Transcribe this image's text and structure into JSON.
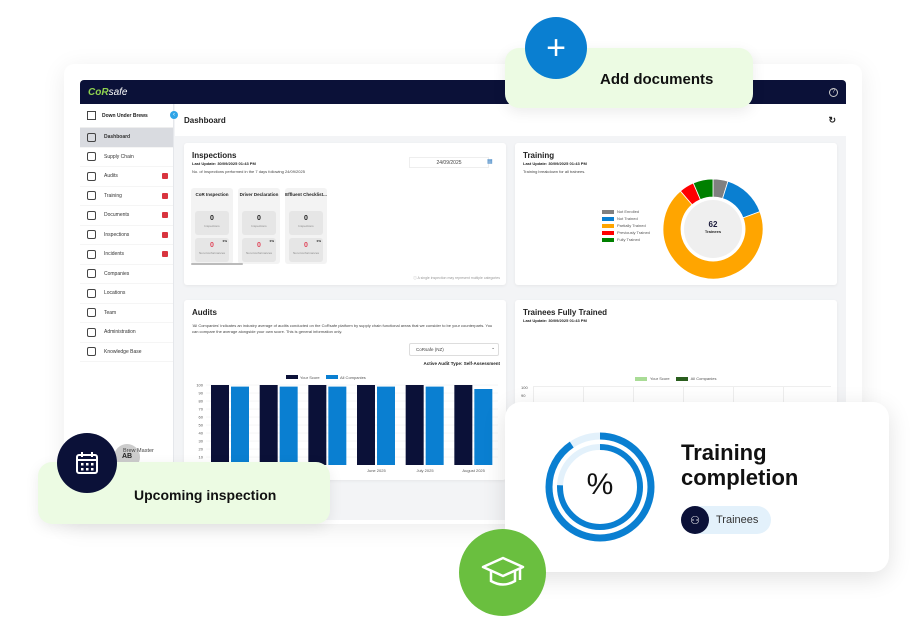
{
  "app": {
    "logo_a": "CoR",
    "logo_b": "safe",
    "company": "Down Under Brews",
    "page_title": "Dashboard",
    "user_initials": "AB",
    "user_name": "Brew Master"
  },
  "sidebar": {
    "items": [
      {
        "label": "Dashboard",
        "active": true,
        "badge": false
      },
      {
        "label": "Supply Chain",
        "badge": false
      },
      {
        "label": "Audits",
        "badge": true
      },
      {
        "label": "Training",
        "badge": true
      },
      {
        "label": "Documents",
        "badge": true
      },
      {
        "label": "Inspections",
        "badge": true
      },
      {
        "label": "Incidents",
        "badge": true
      },
      {
        "label": "Companies",
        "badge": false
      },
      {
        "label": "Locations",
        "badge": false
      },
      {
        "label": "Team",
        "badge": false
      },
      {
        "label": "Administration",
        "badge": false
      },
      {
        "label": "Knowledge Base",
        "badge": false
      }
    ]
  },
  "inspections": {
    "title": "Inspections",
    "last_update": "Last Update: 30/09/2025 01:43 PM",
    "desc": "No. of Inspections performed in the 7 days following 24/09/2025",
    "date": "24/09/2025",
    "note": "A single inspection may represent multiple categories",
    "boxes": [
      {
        "name": "CoR Inspection",
        "count": "0",
        "count_label": "Inspections",
        "nc": "0",
        "nc_pct": "0%",
        "nc_label": "Non-Conformances"
      },
      {
        "name": "Driver Declaration",
        "count": "0",
        "count_label": "Inspections",
        "nc": "0",
        "nc_pct": "0%",
        "nc_label": "Non-Conformances"
      },
      {
        "name": "Effluent Checklist...",
        "count": "0",
        "count_label": "Inspections",
        "nc": "0",
        "nc_pct": "0%",
        "nc_label": "Non-Conformances"
      }
    ]
  },
  "training": {
    "title": "Training",
    "last_update": "Last Update: 30/09/2025 01:43 PM",
    "desc": "Training breakdown for all trainees.",
    "total": "62",
    "total_label": "Trainees"
  },
  "audits": {
    "title": "Audits",
    "desc": "'All Companies' indicates an industry average of audits conducted on the CoRsafe platform by supply chain functional areas that we consider to be your counterparts. You can compare the average alongside your own score. This is general information only.",
    "select": "CoRsafe (NZ)",
    "active_type": "Active Audit Type: Self-Assessment"
  },
  "trainees_fully": {
    "title": "Trainees Fully Trained",
    "last_update": "Last Update: 30/09/2025 01:43 PM",
    "legend": [
      "Your Score",
      "All Companies"
    ],
    "yticks": [
      "100",
      "90",
      "80"
    ]
  },
  "overlays": {
    "add_documents": "Add documents",
    "upcoming": "Upcoming inspection",
    "tc_title_1": "Training",
    "tc_title_2": "completion",
    "tc_symbol": "%",
    "tc_chip": "Trainees"
  },
  "colors": {
    "navy": "#0b1138",
    "blue": "#0a7fd1",
    "green": "#6abf3f",
    "light_green": "#ecfbe3"
  },
  "chart_data": [
    {
      "type": "pie",
      "title": "",
      "categories": [
        "Not Enrolled",
        "Not Trained",
        "Partially Trained",
        "Previously Trained",
        "Fully Trained"
      ],
      "values": [
        3,
        9,
        43,
        3,
        4
      ],
      "colors": [
        "#808080",
        "#0a7fd1",
        "#ffa500",
        "#ff0000",
        "#008000"
      ],
      "legend": "left"
    },
    {
      "type": "bar",
      "categories": [
        "",
        "",
        "",
        "June 2025",
        "July 2025",
        "August 2025"
      ],
      "series": [
        {
          "name": "Your Score",
          "color": "#0b1138",
          "values": [
            100,
            100,
            100,
            100,
            100,
            100
          ]
        },
        {
          "name": "All Companies",
          "color": "#0a7fd1",
          "values": [
            98,
            98,
            98,
            98,
            98,
            95
          ]
        }
      ],
      "ylim": [
        0,
        100
      ],
      "yticks": [
        "100",
        "90",
        "80",
        "70",
        "60",
        "50",
        "40",
        "30",
        "20",
        "10"
      ],
      "grid": true,
      "legend": "top"
    }
  ]
}
